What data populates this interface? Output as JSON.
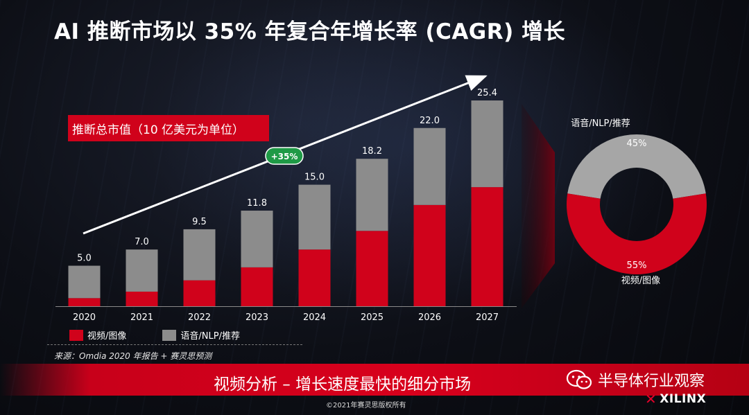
{
  "header": {
    "title": "AI 推断市场以 35% 年复合年增长率 (CAGR) 增长"
  },
  "chart_data": [
    {
      "type": "bar",
      "stacked": true,
      "title": "推断总市值（10 亿美元为单位）",
      "categories": [
        "2020",
        "2021",
        "2022",
        "2023",
        "2024",
        "2025",
        "2026",
        "2027"
      ],
      "totals": [
        "5.0",
        "7.0",
        "9.5",
        "11.8",
        "15.0",
        "18.2",
        "22.0",
        "25.4"
      ],
      "series": [
        {
          "name": "视频/图像",
          "color": "#d0021b",
          "values": [
            1.0,
            1.8,
            3.2,
            4.8,
            7.0,
            9.3,
            12.5,
            14.7
          ]
        },
        {
          "name": "语音/NLP/推荐",
          "color": "#8c8c8c",
          "values": [
            4.0,
            5.2,
            6.3,
            7.0,
            8.0,
            8.9,
            9.5,
            10.7
          ]
        }
      ],
      "ylim": [
        0,
        25.4
      ],
      "grid": false,
      "annotation": "+35%"
    },
    {
      "type": "pie",
      "donut": true,
      "labels": [
        "语音/NLP/推荐",
        "视频/图像"
      ],
      "values": [
        45,
        55
      ],
      "value_labels": [
        "45%",
        "55%"
      ],
      "colors": [
        "#a6a6a6",
        "#d0021b"
      ]
    }
  ],
  "legend": {
    "items": [
      {
        "label": "视频/图像",
        "color": "#d0021b"
      },
      {
        "label": "语音/NLP/推荐",
        "color": "#8c8c8c"
      }
    ]
  },
  "source": "来源：Omdia 2020 年报告 + 赛灵思预测",
  "banner": {
    "text": "视频分析 – 增长速度最快的细分市场"
  },
  "watermark": {
    "icon": "wechat-icon",
    "text": "半导体行业观察"
  },
  "footer": {
    "copyright": "©2021年赛灵思版权所有",
    "brand": "XILINX"
  }
}
